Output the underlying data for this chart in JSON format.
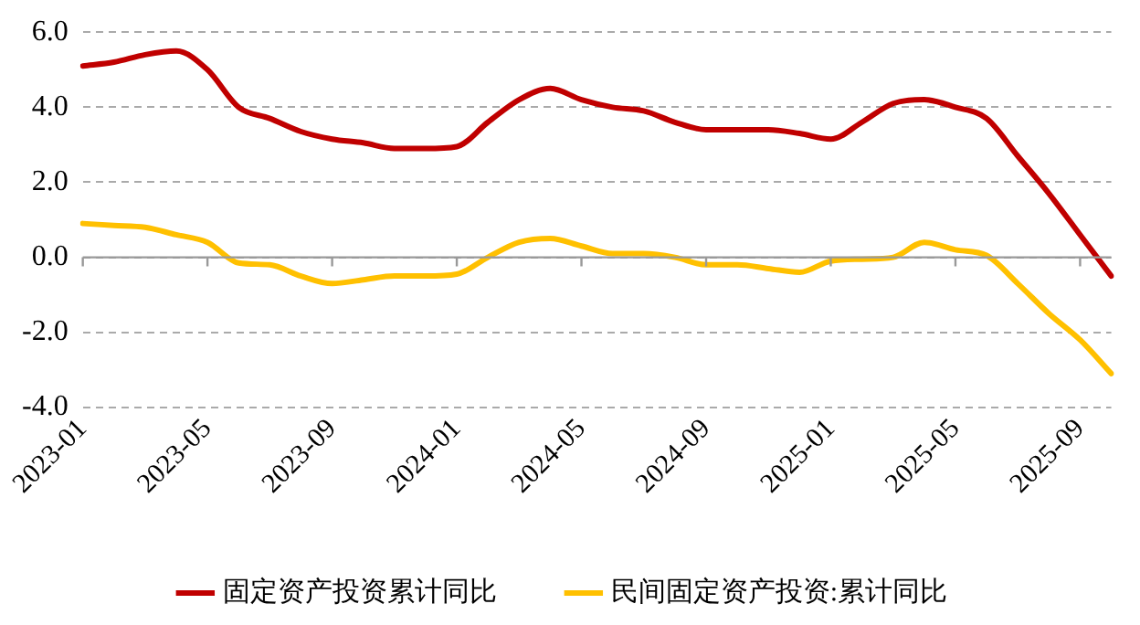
{
  "chart_data": {
    "type": "line",
    "categories": [
      "2023-01",
      null,
      null,
      null,
      "2023-05",
      null,
      null,
      null,
      "2023-09",
      null,
      null,
      null,
      "2024-01",
      null,
      null,
      null,
      "2024-05",
      null,
      null,
      null,
      "2024-09",
      null,
      null,
      null,
      "2025-01",
      null,
      null,
      null,
      "2025-05",
      null,
      null,
      null,
      "2025-09",
      null
    ],
    "series": [
      {
        "name": "固定资产投资累计同比",
        "color": "#c00000",
        "values": [
          5.1,
          5.2,
          5.4,
          5.5,
          5.0,
          4.0,
          3.7,
          3.35,
          3.15,
          3.05,
          2.9,
          2.9,
          2.95,
          3.6,
          4.2,
          4.5,
          4.2,
          4.0,
          3.9,
          3.6,
          3.4,
          3.4,
          3.4,
          3.3,
          3.15,
          3.6,
          4.1,
          4.2,
          4.0,
          3.7,
          2.7,
          1.7,
          0.6,
          -0.5
        ]
      },
      {
        "name": "民间固定资产投资:累计同比",
        "color": "#ffc000",
        "values": [
          0.9,
          0.85,
          0.8,
          0.6,
          0.4,
          -0.15,
          -0.2,
          -0.5,
          -0.7,
          -0.6,
          -0.5,
          -0.5,
          -0.45,
          0.0,
          0.4,
          0.5,
          0.3,
          0.1,
          0.1,
          0.0,
          -0.2,
          -0.2,
          -0.3,
          -0.4,
          -0.1,
          -0.05,
          0.0,
          0.4,
          0.2,
          0.05,
          -0.7,
          -1.5,
          -2.2,
          -3.1
        ]
      }
    ],
    "ylim": [
      -4,
      6
    ],
    "yticks": [
      {
        "value": -4,
        "label": "-4.0"
      },
      {
        "value": -2,
        "label": "-2.0"
      },
      {
        "value": 0,
        "label": "0.0"
      },
      {
        "value": 2,
        "label": "2.0"
      },
      {
        "value": 4,
        "label": "4.0"
      },
      {
        "value": 6,
        "label": "6.0"
      }
    ],
    "grid": "y",
    "legend": "bottom",
    "marker": "none",
    "line_style": "solid"
  }
}
